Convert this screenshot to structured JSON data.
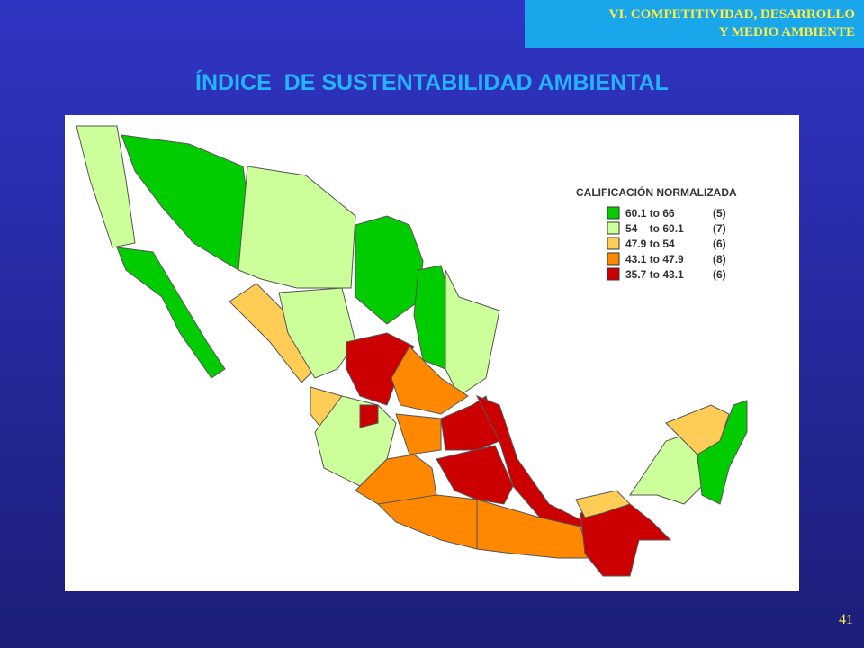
{
  "header": {
    "section": [
      "VI. COMPETITIVIDAD, DESARROLLO",
      "Y MEDIO AMBIENTE"
    ]
  },
  "title": "ÍNDICE  DE SUSTENTABILIDAD AMBIENTAL",
  "legend": {
    "title": "CALIFICACIÓN NORMALIZADA",
    "entries": [
      {
        "range": "60.1 to 66",
        "count": "(5)"
      },
      {
        "range": "54    to 60.1",
        "count": "(7)"
      },
      {
        "range": "47.9 to 54",
        "count": "(6)"
      },
      {
        "range": "43.1 to 47.9",
        "count": "(8)"
      },
      {
        "range": "35.7 to 43.1",
        "count": "(6)"
      }
    ]
  },
  "page_number": "41"
}
